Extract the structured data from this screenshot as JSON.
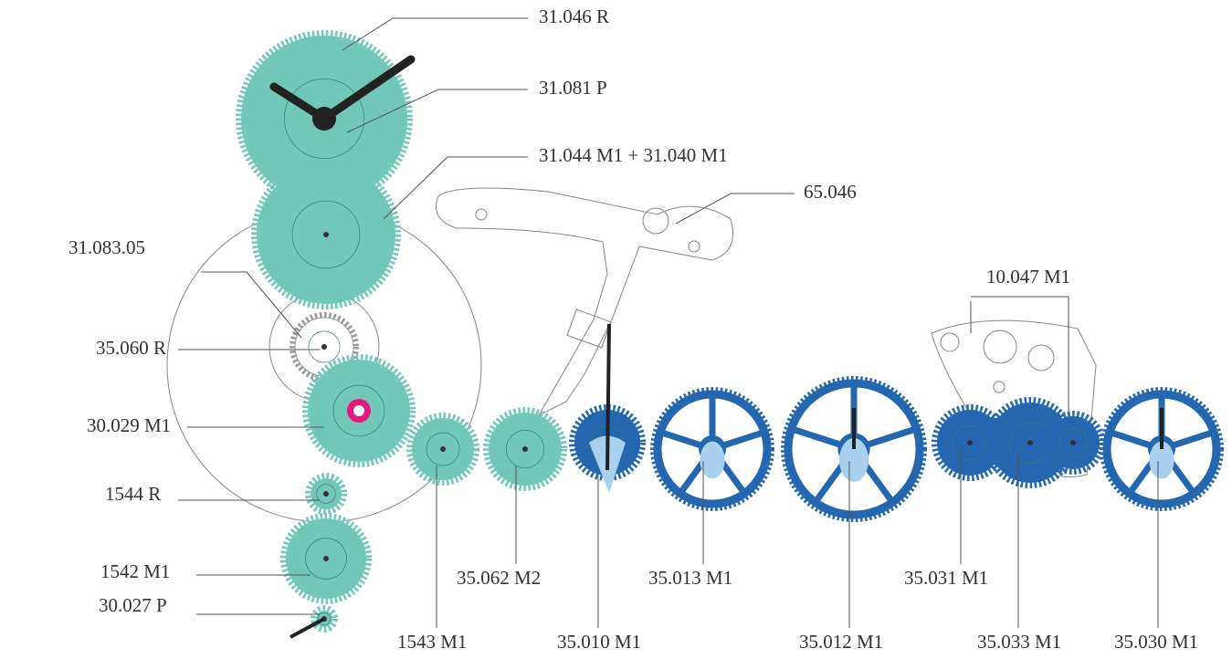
{
  "labels": [
    "31.046 R",
    "31.081 P",
    "31.044 M1 + 31.040 M1",
    "65.046",
    "31.083.05",
    "10.047 M1",
    "35.060 R",
    "30.029 M1",
    "1544 R",
    "1542 M1",
    "30.027 P",
    "1543 M1",
    "35.062 M2",
    "35.010 M1",
    "35.013 M1",
    "35.012 M1",
    "35.031 M1",
    "35.033 M1",
    "35.030 M1"
  ]
}
